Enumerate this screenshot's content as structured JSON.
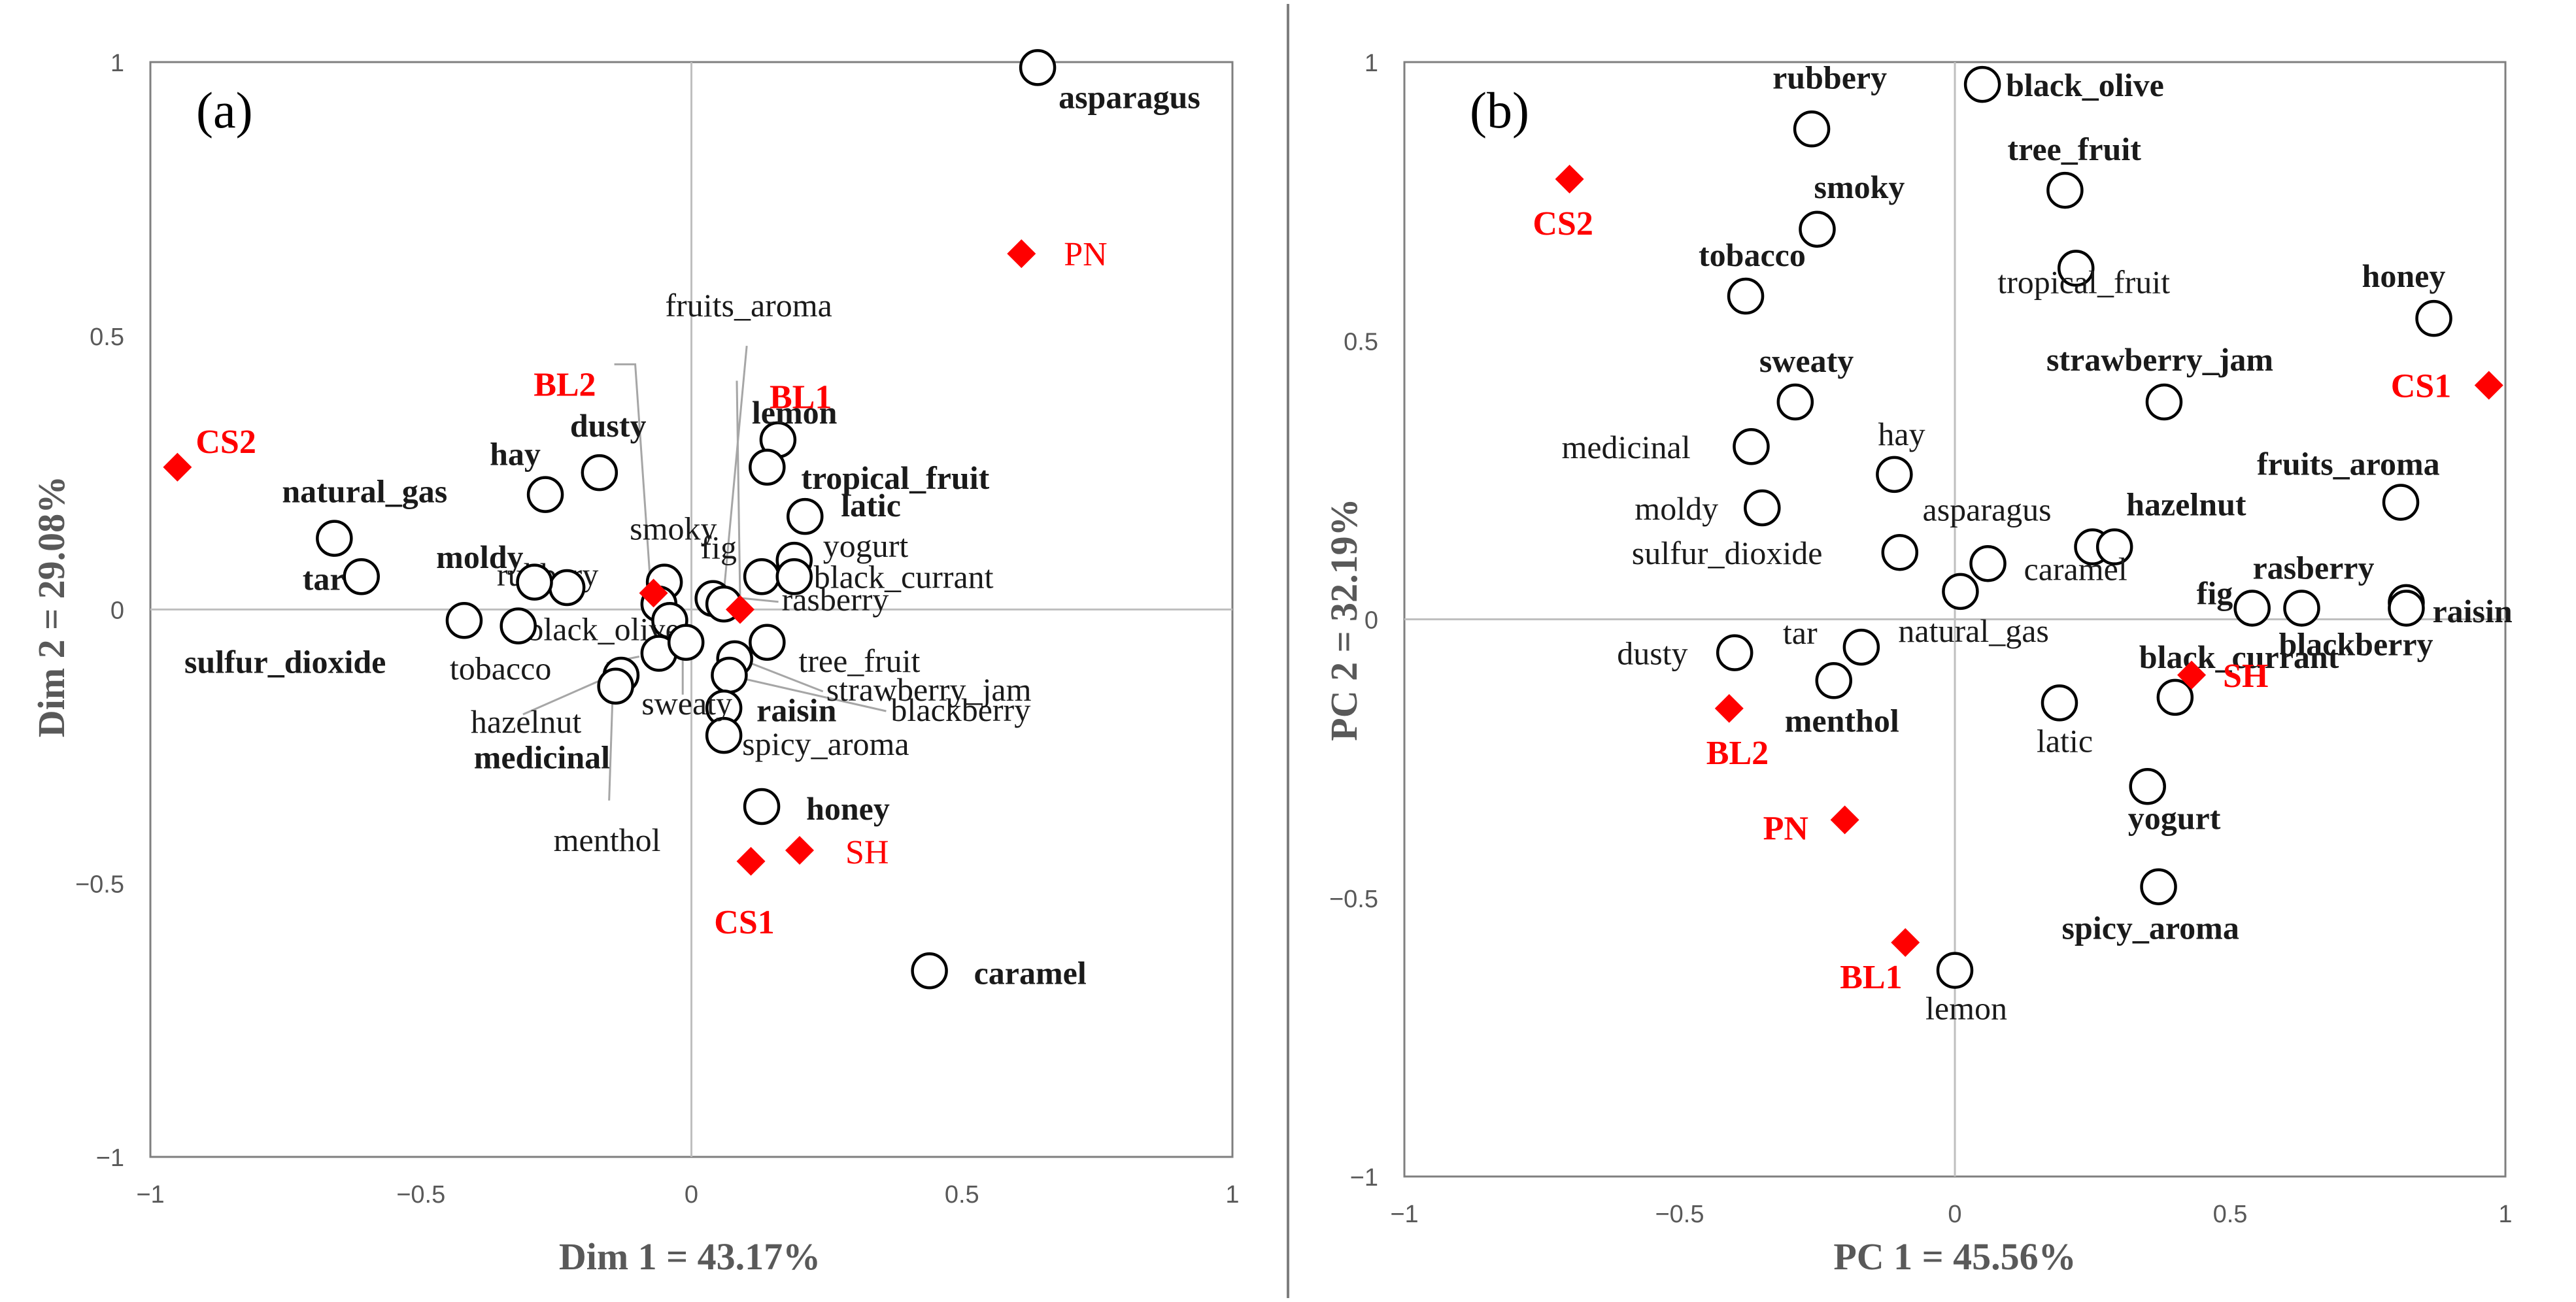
{
  "chart_data": [
    {
      "type": "scatter",
      "panel": "(a)",
      "xlabel": "Dim 1 = 43.17%",
      "ylabel": "Dim 2 = 29.08%",
      "xlim": [
        -1,
        1
      ],
      "ylim": [
        -1,
        1
      ],
      "xticks": [
        "−1",
        "−0.5",
        "0",
        "0.5",
        "1"
      ],
      "yticks": [
        "1",
        "0.5",
        "0",
        "−0.5",
        "−1"
      ],
      "tick_values": [
        -1,
        -0.5,
        0,
        0.5,
        1
      ],
      "grid": "zero-lines",
      "variables": [
        {
          "name": "asparagus",
          "x": 0.64,
          "y": 0.99,
          "bold": true
        },
        {
          "name": "lemon",
          "x": 0.16,
          "y": 0.31,
          "bold": true
        },
        {
          "name": "tropical_fruit",
          "x": 0.14,
          "y": 0.26,
          "bold": true
        },
        {
          "name": "latic",
          "x": 0.21,
          "y": 0.17,
          "bold": true
        },
        {
          "name": "yogurt",
          "x": 0.19,
          "y": 0.09,
          "bold": false
        },
        {
          "name": "fig",
          "x": 0.13,
          "y": 0.06,
          "bold": false
        },
        {
          "name": "black_currant",
          "x": 0.19,
          "y": 0.06,
          "bold": false
        },
        {
          "name": "rasberry",
          "x": 0.04,
          "y": 0.02,
          "bold": false
        },
        {
          "name": "fruits_aroma",
          "x": 0.06,
          "y": 0.01,
          "bold": false
        },
        {
          "name": "tree_fruit",
          "x": 0.14,
          "y": -0.06,
          "bold": false
        },
        {
          "name": "strawberry_jam",
          "x": 0.08,
          "y": -0.09,
          "bold": false
        },
        {
          "name": "blackberry",
          "x": 0.07,
          "y": -0.12,
          "bold": false
        },
        {
          "name": "raisin",
          "x": 0.06,
          "y": -0.18,
          "bold": true
        },
        {
          "name": "spicy_aroma",
          "x": 0.06,
          "y": -0.23,
          "bold": false
        },
        {
          "name": "honey",
          "x": 0.13,
          "y": -0.36,
          "bold": true
        },
        {
          "name": "caramel",
          "x": 0.44,
          "y": -0.66,
          "bold": true
        },
        {
          "name": "smoky",
          "x": -0.05,
          "y": 0.05,
          "bold": false
        },
        {
          "name": "rubbery",
          "x": -0.06,
          "y": 0.01,
          "bold": false
        },
        {
          "name": "black_olive",
          "x": -0.04,
          "y": -0.02,
          "bold": false
        },
        {
          "name": "hazelnut",
          "x": -0.13,
          "y": -0.12,
          "bold": false
        },
        {
          "name": "tobacco",
          "x": -0.06,
          "y": -0.08,
          "bold": false
        },
        {
          "name": "sweaty",
          "x": -0.01,
          "y": -0.06,
          "bold": false
        },
        {
          "name": "menthol",
          "x": -0.14,
          "y": -0.14,
          "bold": false
        },
        {
          "name": "medicinal",
          "x": -0.32,
          "y": -0.03,
          "bold": true
        },
        {
          "name": "moldy",
          "x": -0.23,
          "y": 0.04,
          "bold": true
        },
        {
          "name": "hay",
          "x": -0.27,
          "y": 0.21,
          "bold": true
        },
        {
          "name": "dusty",
          "x": -0.17,
          "y": 0.25,
          "bold": true
        },
        {
          "name": "natural_gas",
          "x": -0.66,
          "y": 0.13,
          "bold": true
        },
        {
          "name": "tar",
          "x": -0.61,
          "y": 0.06,
          "bold": true
        },
        {
          "name": "sulfur_dioxide",
          "x": -0.42,
          "y": -0.02,
          "bold": true
        },
        {
          "name": "",
          "x": -0.29,
          "y": 0.05,
          "bold": false
        }
      ],
      "wines": [
        {
          "name": "CS2",
          "x": -0.95,
          "y": 0.26
        },
        {
          "name": "PN",
          "x": 0.61,
          "y": 0.65
        },
        {
          "name": "BL2",
          "x": -0.07,
          "y": 0.03
        },
        {
          "name": "BL1",
          "x": 0.09,
          "y": 0.0
        },
        {
          "name": "CS1",
          "x": 0.11,
          "y": -0.46
        },
        {
          "name": "SH",
          "x": 0.2,
          "y": -0.44
        }
      ]
    },
    {
      "type": "scatter",
      "panel": "(b)",
      "xlabel": "PC 1 = 45.56%",
      "ylabel": "PC 2 = 32.19%",
      "xlim": [
        -1,
        1
      ],
      "ylim": [
        -1,
        1
      ],
      "xticks": [
        "−1",
        "−0.5",
        "0",
        "0.5",
        "1"
      ],
      "yticks": [
        "1",
        "0.5",
        "0",
        "−0.5",
        "−1"
      ],
      "tick_values": [
        -1,
        -0.5,
        0,
        0.5,
        1
      ],
      "grid": "zero-lines",
      "variables": [
        {
          "name": "rubbery",
          "x": -0.26,
          "y": 0.88,
          "bold": true
        },
        {
          "name": "black_olive",
          "x": 0.05,
          "y": 0.96,
          "bold": true
        },
        {
          "name": "tree_fruit",
          "x": 0.2,
          "y": 0.77,
          "bold": true
        },
        {
          "name": "smoky",
          "x": -0.25,
          "y": 0.7,
          "bold": true
        },
        {
          "name": "tropical_fruit",
          "x": 0.22,
          "y": 0.63,
          "bold": false
        },
        {
          "name": "tobacco",
          "x": -0.38,
          "y": 0.58,
          "bold": true
        },
        {
          "name": "honey",
          "x": 0.87,
          "y": 0.54,
          "bold": true
        },
        {
          "name": "sweaty",
          "x": -0.29,
          "y": 0.39,
          "bold": true
        },
        {
          "name": "strawberry_jam",
          "x": 0.38,
          "y": 0.39,
          "bold": true
        },
        {
          "name": "medicinal",
          "x": -0.37,
          "y": 0.31,
          "bold": false
        },
        {
          "name": "hay",
          "x": -0.11,
          "y": 0.26,
          "bold": false
        },
        {
          "name": "fruits_aroma",
          "x": 0.81,
          "y": 0.21,
          "bold": true
        },
        {
          "name": "moldy",
          "x": -0.35,
          "y": 0.2,
          "bold": false
        },
        {
          "name": "asparagus",
          "x": 0.25,
          "y": 0.13,
          "bold": false
        },
        {
          "name": "hazelnut",
          "x": 0.29,
          "y": 0.13,
          "bold": true
        },
        {
          "name": "sulfur_dioxide",
          "x": -0.1,
          "y": 0.12,
          "bold": false
        },
        {
          "name": "caramel",
          "x": 0.06,
          "y": 0.1,
          "bold": false
        },
        {
          "name": "natural_gas",
          "x": 0.01,
          "y": 0.05,
          "bold": false
        },
        {
          "name": "fig",
          "x": 0.54,
          "y": 0.02,
          "bold": true
        },
        {
          "name": "rasberry",
          "x": 0.63,
          "y": 0.02,
          "bold": true
        },
        {
          "name": "raisin",
          "x": 0.82,
          "y": 0.03,
          "bold": true
        },
        {
          "name": "blackberry",
          "x": 0.82,
          "y": 0.02,
          "bold": true
        },
        {
          "name": "tar",
          "x": -0.17,
          "y": -0.05,
          "bold": false
        },
        {
          "name": "dusty",
          "x": -0.4,
          "y": -0.06,
          "bold": false
        },
        {
          "name": "menthol",
          "x": -0.22,
          "y": -0.11,
          "bold": true
        },
        {
          "name": "latic",
          "x": 0.19,
          "y": -0.15,
          "bold": false
        },
        {
          "name": "black_currant",
          "x": 0.4,
          "y": -0.14,
          "bold": true
        },
        {
          "name": "yogurt",
          "x": 0.35,
          "y": -0.3,
          "bold": true
        },
        {
          "name": "spicy_aroma",
          "x": 0.37,
          "y": -0.48,
          "bold": true
        },
        {
          "name": "lemon",
          "x": 0.0,
          "y": -0.63,
          "bold": false
        }
      ],
      "wines": [
        {
          "name": "CS2",
          "x": -0.7,
          "y": 0.79
        },
        {
          "name": "CS1",
          "x": 0.97,
          "y": 0.42
        },
        {
          "name": "SH",
          "x": 0.43,
          "y": -0.1
        },
        {
          "name": "BL2",
          "x": -0.41,
          "y": -0.16
        },
        {
          "name": "PN",
          "x": -0.2,
          "y": -0.36
        },
        {
          "name": "BL1",
          "x": -0.09,
          "y": -0.58
        }
      ]
    }
  ]
}
